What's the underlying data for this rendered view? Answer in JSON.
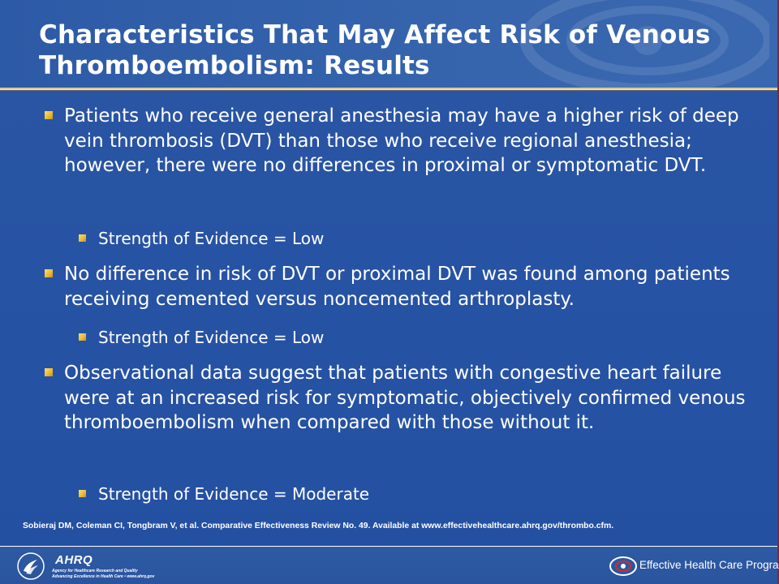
{
  "title": "Characteristics That May Affect Risk of Venous Thromboembolism: Results",
  "bullets": [
    {
      "text": "Patients who receive general anesthesia may have a higher risk of deep vein thrombosis (DVT) than those who receive regional anesthesia; however, there were no differences in proximal or symptomatic DVT.",
      "sub": "Strength of Evidence = Low"
    },
    {
      "text": "No difference in risk of DVT or proximal DVT was found among patients receiving cemented versus noncemented arthroplasty.",
      "sub": "Strength of Evidence = Low"
    },
    {
      "text": "Observational data suggest that patients with congestive heart failure were at an increased risk for symptomatic, objectively confirmed venous thromboembolism when compared with those without it.",
      "sub": "Strength of Evidence = Moderate"
    }
  ],
  "citation": "Sobieraj DM, Coleman CI, Tongbram V, et al. Comparative Effectiveness Review No. 49. Available at www.effectivehealthcare.ahrq.gov/thrombo.cfm.",
  "footer": {
    "ahrq_word": "AHRQ",
    "ahrq_line1": "Agency for Healthcare Research and Quality",
    "ahrq_line2": "Advancing Excellence in Health Care • www.ahrq.gov",
    "program_name": "Effective Health Care Program"
  },
  "colors": {
    "background": "#2753a4",
    "bullet_marker": "#e9b933",
    "title_rule": "#d9c79a"
  }
}
